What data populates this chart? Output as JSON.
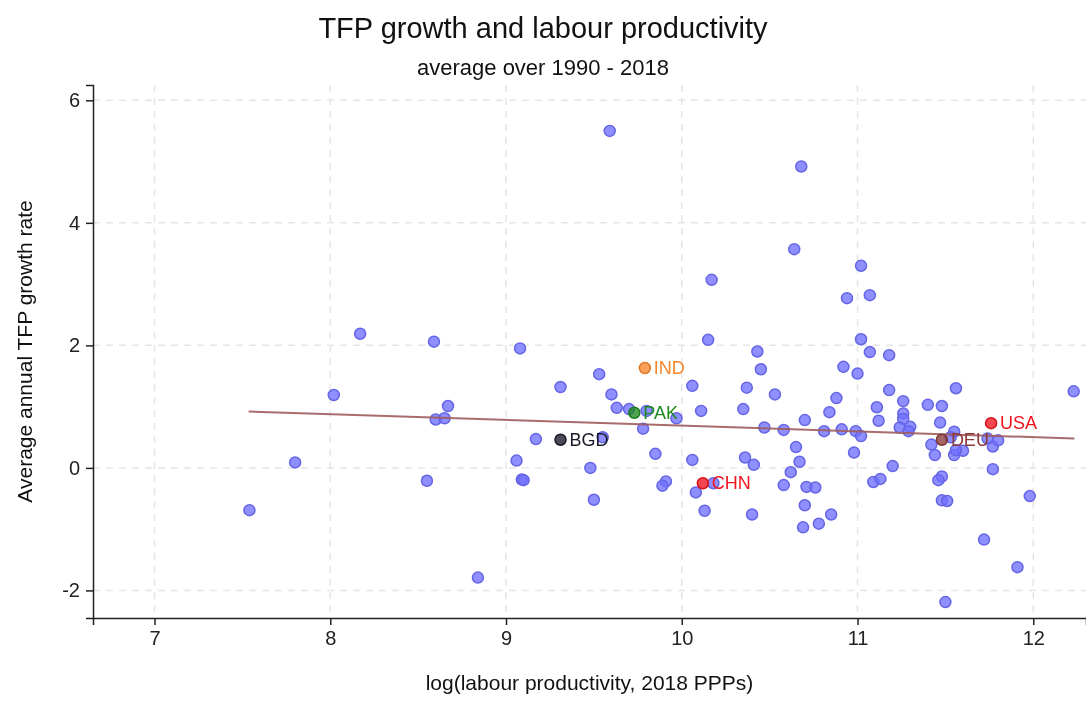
{
  "chart_data": {
    "type": "scatter",
    "title": "TFP growth and labour productivity",
    "subtitle": "average over 1990 - 2018",
    "xlabel": "log(labour productivity, 2018 PPPs)",
    "ylabel": "Average annual TFP growth rate",
    "xlim": [
      6.65,
      12.3
    ],
    "ylim": [
      -2.45,
      6.25
    ],
    "xticks": [
      7,
      8,
      9,
      10,
      11,
      12
    ],
    "yticks": [
      -2,
      0,
      2,
      4,
      6
    ],
    "grid": true,
    "marker": "circle",
    "series": [
      {
        "color": "#7070ff",
        "x": [
          8.17,
          9.59,
          10.17,
          8.59,
          9.08,
          10.15,
          10.43,
          10.68,
          10.64,
          11.02,
          10.94,
          11.07,
          11.02,
          11.07,
          11.18,
          8.02,
          7.8,
          7.54,
          8.55,
          9.53,
          9.31,
          9.6,
          10.06,
          10.37,
          8.67,
          8.6,
          8.65,
          9.63,
          9.7,
          9.8,
          9.97,
          9.78,
          10.11,
          10.35,
          9.17,
          9.55,
          9.06,
          9.48,
          9.85,
          10.06,
          10.36,
          10.41,
          9.09,
          9.1,
          9.91,
          9.89,
          10.18,
          10.08,
          9.5,
          10.13,
          10.4,
          8.84,
          10.45,
          10.92,
          11.0,
          10.53,
          10.88,
          11.18,
          11.56,
          12.23,
          11.26,
          11.4,
          11.48,
          10.84,
          11.11,
          11.26,
          10.7,
          11.12,
          11.26,
          11.47,
          10.47,
          10.58,
          10.81,
          10.91,
          10.99,
          11.02,
          11.24,
          11.3,
          11.29,
          11.55,
          11.53,
          11.42,
          11.44,
          11.55,
          11.6,
          11.56,
          11.77,
          11.8,
          11.74,
          10.65,
          10.67,
          10.98,
          11.2,
          10.62,
          11.77,
          10.58,
          10.71,
          10.76,
          11.09,
          11.13,
          11.48,
          11.46,
          10.7,
          10.85,
          10.78,
          10.69,
          11.48,
          11.51,
          11.98,
          11.72,
          11.91,
          11.5
        ],
        "values": [
          2.19,
          5.5,
          3.07,
          2.06,
          1.95,
          2.09,
          1.9,
          4.92,
          3.57,
          3.3,
          2.77,
          2.82,
          2.1,
          1.89,
          1.84,
          1.19,
          0.09,
          -0.69,
          -0.21,
          1.53,
          1.32,
          1.2,
          1.34,
          1.31,
          1.01,
          0.79,
          0.81,
          0.98,
          0.96,
          0.93,
          0.81,
          0.64,
          0.93,
          0.96,
          0.47,
          0.5,
          0.12,
          0.0,
          0.23,
          0.13,
          0.17,
          0.05,
          -0.19,
          -0.2,
          -0.22,
          -0.29,
          -0.25,
          -0.4,
          -0.52,
          -0.7,
          -0.76,
          -1.79,
          1.61,
          1.65,
          1.54,
          1.2,
          1.14,
          1.27,
          1.3,
          1.25,
          1.09,
          1.03,
          1.01,
          0.91,
          0.99,
          0.89,
          0.78,
          0.77,
          0.8,
          0.74,
          0.66,
          0.62,
          0.6,
          0.63,
          0.6,
          0.52,
          0.66,
          0.67,
          0.6,
          0.59,
          0.5,
          0.38,
          0.21,
          0.21,
          0.28,
          0.29,
          0.35,
          0.45,
          0.48,
          0.34,
          0.1,
          0.25,
          0.03,
          -0.07,
          -0.02,
          -0.28,
          -0.31,
          -0.32,
          -0.23,
          -0.18,
          -0.14,
          -0.2,
          -0.61,
          -0.76,
          -0.91,
          -0.97,
          -0.53,
          -0.54,
          -0.46,
          -1.17,
          -1.62,
          -2.19
        ]
      },
      {
        "type": "line",
        "marker": "none",
        "color": "#a05c5c",
        "x": [
          7.54,
          12.23
        ],
        "values": [
          0.92,
          0.48
        ]
      },
      {
        "name": "IND",
        "color": "#f7862a",
        "x": [
          9.79
        ],
        "values": [
          1.63
        ]
      },
      {
        "name": "PAK",
        "color": "#1f8a1f",
        "x": [
          9.73
        ],
        "values": [
          0.9
        ]
      },
      {
        "name": "BGD",
        "color": "#1a1a2a",
        "x": [
          9.31
        ],
        "values": [
          0.46
        ]
      },
      {
        "name": "CHN",
        "color": "#f0141e",
        "x": [
          10.12
        ],
        "values": [
          -0.25
        ]
      },
      {
        "name": "USA",
        "color": "#f0141e",
        "x": [
          11.76
        ],
        "values": [
          0.73
        ]
      },
      {
        "name": "DEU",
        "color": "#8b3a3a",
        "x": [
          11.48
        ],
        "values": [
          0.46
        ]
      }
    ]
  }
}
